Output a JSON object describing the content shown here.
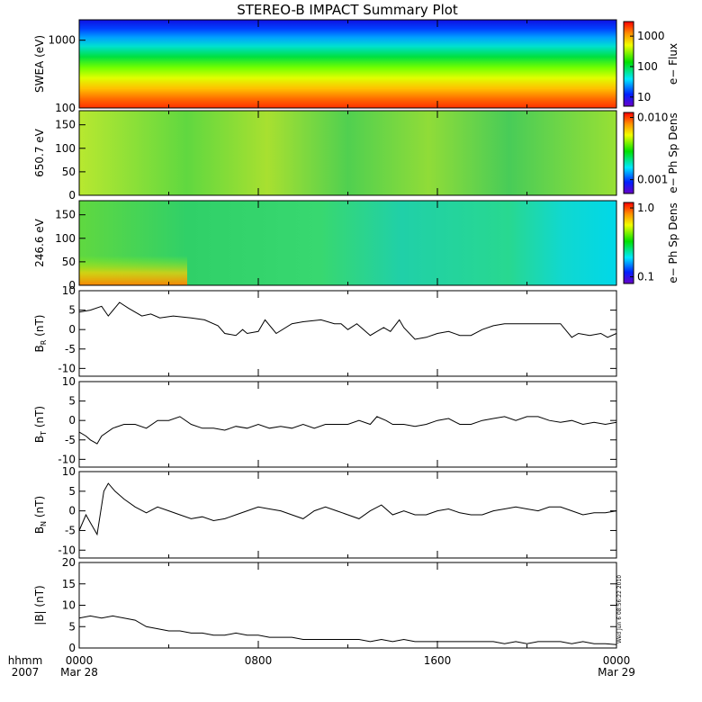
{
  "title": "STEREO-B IMPACT Summary Plot",
  "stamp": "Wed Jun  6 08:56:22 2010",
  "time_axis": {
    "labels_row1": [
      "hhmm",
      "0000",
      "0800",
      "1600",
      "0000"
    ],
    "labels_row2": [
      "2007",
      "Mar 28",
      "",
      "",
      "Mar 29"
    ],
    "range_hours": [
      0,
      24
    ]
  },
  "chart_data": [
    {
      "type": "heatmap",
      "ylabel": "SWEA (eV)",
      "yscale": "log",
      "ylim": [
        100,
        2000
      ],
      "ytick_labels": [
        "1000",
        "100"
      ],
      "colorbar": {
        "label": "e− Flux",
        "scale": "log",
        "range": [
          5,
          3000
        ],
        "tick_labels": [
          "1000",
          "100",
          "10"
        ]
      },
      "description_of_values": "flux decreases with energy: ~2000 near 100 eV, ~500 at 200 eV, ~100 at 500 eV, ~20 at 1000 eV, ~5 at 1800 eV"
    },
    {
      "type": "heatmap",
      "ylabel": "650.7 eV",
      "ylim": [
        0,
        180
      ],
      "ytick_labels": [
        "150",
        "100",
        "50",
        "0"
      ],
      "colorbar": {
        "label": "e− Ph Sp Dens",
        "scale": "log",
        "range": [
          0.0006,
          0.012
        ],
        "tick_labels": [
          "0.010",
          "0.001"
        ]
      }
    },
    {
      "type": "heatmap",
      "ylabel": "246.6 eV",
      "ylim": [
        0,
        180
      ],
      "ytick_labels": [
        "150",
        "100",
        "50",
        "0"
      ],
      "colorbar": {
        "label": "e− Ph Sp Dens",
        "scale": "log",
        "range": [
          0.08,
          1.2
        ],
        "tick_labels": [
          "1.0",
          "0.1"
        ]
      }
    },
    {
      "type": "line",
      "ylabel_main": "B",
      "ylabel_sub": "R",
      "ylabel_unit": " (nT)",
      "ylim": [
        -12,
        10
      ],
      "ytick_labels": [
        "10",
        "5",
        "0",
        "-5",
        "-10"
      ],
      "x": [
        0,
        0.5,
        1,
        1.3,
        1.8,
        2.2,
        2.8,
        3.2,
        3.6,
        4.2,
        5,
        5.6,
        6.2,
        6.5,
        7,
        7.3,
        7.5,
        8,
        8.3,
        8.8,
        9.5,
        10,
        10.8,
        11.4,
        11.7,
        12,
        12.4,
        13,
        13.3,
        13.6,
        13.9,
        14.3,
        14.5,
        15,
        15.5,
        16,
        16.5,
        17,
        17.5,
        18,
        18.5,
        19,
        19.3,
        19.6,
        20.3,
        21,
        21.5,
        22,
        22.3,
        22.8,
        23.3,
        23.6,
        24
      ],
      "y": [
        4.5,
        5,
        6,
        3.5,
        7,
        5.5,
        3.5,
        4,
        3,
        3.5,
        3,
        2.5,
        1,
        -1,
        -1.5,
        0,
        -1,
        -0.5,
        2.5,
        -1,
        1.5,
        2,
        2.5,
        1.5,
        1.5,
        0,
        1.5,
        -1.5,
        -0.5,
        0.5,
        -0.5,
        2.5,
        0.5,
        -2.5,
        -2,
        -1,
        -0.5,
        -1.5,
        -1.5,
        0,
        1,
        1.5,
        1.5,
        1.5,
        1.5,
        1.5,
        1.5,
        -2,
        -1,
        -1.5,
        -1,
        -2,
        -1
      ]
    },
    {
      "type": "line",
      "ylabel_main": "B",
      "ylabel_sub": "T",
      "ylabel_unit": " (nT)",
      "ylim": [
        -12,
        10
      ],
      "ytick_labels": [
        "10",
        "5",
        "0",
        "-5",
        "-10"
      ],
      "x": [
        0,
        0.3,
        0.5,
        0.8,
        1,
        1.5,
        2,
        2.5,
        3,
        3.5,
        4,
        4.5,
        5,
        5.5,
        6,
        6.5,
        7,
        7.5,
        8,
        8.5,
        9,
        9.5,
        10,
        10.5,
        11,
        11.5,
        12,
        12.5,
        13,
        13.3,
        13.7,
        14,
        14.5,
        15,
        15.5,
        16,
        16.5,
        17,
        17.5,
        18,
        18.5,
        19,
        19.5,
        20,
        20.5,
        21,
        21.5,
        22,
        22.5,
        23,
        23.5,
        24
      ],
      "y": [
        -3,
        -4,
        -5,
        -6,
        -4,
        -2,
        -1,
        -1,
        -2,
        0,
        0,
        1,
        -1,
        -2,
        -2,
        -2.5,
        -1.5,
        -2,
        -1,
        -2,
        -1.5,
        -2,
        -1,
        -2,
        -1,
        -1,
        -1,
        0,
        -1,
        1,
        0,
        -1,
        -1,
        -1.5,
        -1,
        0,
        0.5,
        -1,
        -1,
        0,
        0.5,
        1,
        0,
        1,
        1,
        0,
        -0.5,
        0,
        -1,
        -0.5,
        -1,
        -0.5
      ]
    },
    {
      "type": "line",
      "ylabel_main": "B",
      "ylabel_sub": "N",
      "ylabel_unit": " (nT)",
      "ylim": [
        -12,
        10
      ],
      "ytick_labels": [
        "10",
        "5",
        "0",
        "-5",
        "-10"
      ],
      "x": [
        0,
        0.3,
        0.5,
        0.8,
        1.1,
        1.3,
        1.6,
        2,
        2.5,
        3,
        3.5,
        4,
        4.5,
        5,
        5.5,
        6,
        6.5,
        7,
        7.5,
        8,
        8.5,
        9,
        9.5,
        10,
        10.5,
        11,
        11.5,
        12,
        12.5,
        13,
        13.5,
        14,
        14.5,
        15,
        15.5,
        16,
        16.5,
        17,
        17.5,
        18,
        18.5,
        19,
        19.5,
        20,
        20.5,
        21,
        21.5,
        22,
        22.5,
        23,
        23.5,
        24
      ],
      "y": [
        -5,
        -1,
        -3,
        -6,
        5,
        7,
        5,
        3,
        1,
        -0.5,
        1,
        0,
        -1,
        -2,
        -1.5,
        -2.5,
        -2,
        -1,
        0,
        1,
        0.5,
        0,
        -1,
        -2,
        0,
        1,
        0,
        -1,
        -2,
        0,
        1.5,
        -1,
        0,
        -1,
        -1,
        0,
        0.5,
        -0.5,
        -1,
        -1,
        0,
        0.5,
        1,
        0.5,
        0,
        1,
        1,
        0,
        -1,
        -0.5,
        -0.5,
        0
      ]
    },
    {
      "type": "line",
      "ylabel_main": "|B|",
      "ylabel_sub": "",
      "ylabel_unit": " (nT)",
      "ylim": [
        0,
        20
      ],
      "ytick_labels": [
        "20",
        "15",
        "10",
        "5",
        "0"
      ],
      "x": [
        0,
        0.5,
        1,
        1.5,
        2,
        2.5,
        3,
        3.5,
        4,
        4.5,
        5,
        5.5,
        6,
        6.5,
        7,
        7.5,
        8,
        8.5,
        9,
        9.5,
        10,
        10.5,
        11,
        11.5,
        12,
        12.5,
        13,
        13.5,
        14,
        14.5,
        15,
        15.5,
        16,
        16.5,
        17,
        17.5,
        18,
        18.5,
        19,
        19.5,
        20,
        20.5,
        21,
        21.5,
        22,
        22.5,
        23,
        23.5,
        24
      ],
      "y": [
        7,
        7.5,
        7,
        7.5,
        7,
        6.5,
        5,
        4.5,
        4,
        4,
        3.5,
        3.5,
        3,
        3,
        3.5,
        3,
        3,
        2.5,
        2.5,
        2.5,
        2,
        2,
        2,
        2,
        2,
        2,
        1.5,
        2,
        1.5,
        2,
        1.5,
        1.5,
        1.5,
        1.5,
        1.5,
        1.5,
        1.5,
        1.5,
        1,
        1.5,
        1,
        1.5,
        1.5,
        1.5,
        1,
        1.5,
        1,
        1,
        0.8
      ]
    }
  ]
}
